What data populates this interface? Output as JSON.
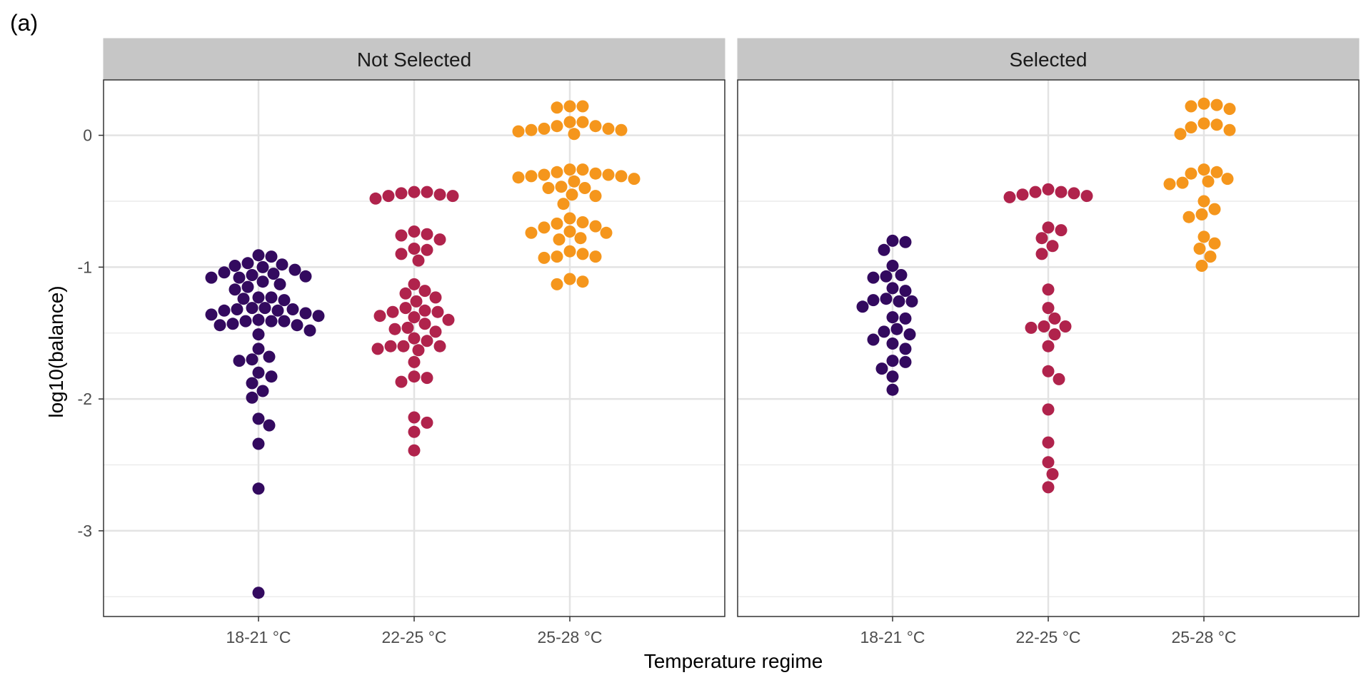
{
  "figure_tag": "(a)",
  "chart_data": {
    "type": "scatter",
    "subtype": "beeswarm (faceted)",
    "xlabel": "Temperature regime",
    "ylabel": "log10(balance)",
    "categories": [
      "18-21 °C",
      "22-25 °C",
      "25-28 °C"
    ],
    "ylim": [
      -3.65,
      0.42
    ],
    "yticks": [
      0,
      -1,
      -2,
      -3
    ],
    "yticklabels": [
      "0",
      "-1",
      "-2",
      "-3"
    ],
    "grid": true,
    "legend": "none",
    "colors": {
      "18-21 °C": "#330a5f",
      "22-25 °C": "#b0234c",
      "25-28 °C": "#f5961c"
    },
    "facets": [
      {
        "title": "Not Selected",
        "groups": [
          {
            "category": "18-21 °C",
            "y": [
              -0.91,
              -0.92,
              -0.97,
              -0.98,
              -0.99,
              -1.0,
              -1.02,
              -1.04,
              -1.05,
              -1.06,
              -1.07,
              -1.08,
              -1.08,
              -1.11,
              -1.13,
              -1.15,
              -1.17,
              -1.23,
              -1.23,
              -1.24,
              -1.25,
              -1.31,
              -1.31,
              -1.32,
              -1.32,
              -1.33,
              -1.33,
              -1.35,
              -1.36,
              -1.37,
              -1.4,
              -1.41,
              -1.41,
              -1.41,
              -1.43,
              -1.44,
              -1.44,
              -1.48,
              -1.51,
              -1.62,
              -1.68,
              -1.7,
              -1.71,
              -1.8,
              -1.83,
              -1.88,
              -1.94,
              -1.99,
              -2.15,
              -2.2,
              -2.34,
              -2.68,
              -3.47
            ]
          },
          {
            "category": "22-25 °C",
            "y": [
              -0.43,
              -0.43,
              -0.44,
              -0.45,
              -0.46,
              -0.46,
              -0.48,
              -0.73,
              -0.75,
              -0.76,
              -0.79,
              -0.86,
              -0.87,
              -0.9,
              -0.95,
              -1.13,
              -1.18,
              -1.2,
              -1.23,
              -1.26,
              -1.31,
              -1.33,
              -1.34,
              -1.34,
              -1.37,
              -1.38,
              -1.4,
              -1.43,
              -1.46,
              -1.47,
              -1.49,
              -1.54,
              -1.56,
              -1.6,
              -1.6,
              -1.6,
              -1.62,
              -1.63,
              -1.72,
              -1.83,
              -1.84,
              -1.87,
              -2.14,
              -2.18,
              -2.25,
              -2.39
            ]
          },
          {
            "category": "25-28 °C",
            "y": [
              0.22,
              0.21,
              0.22,
              0.1,
              0.1,
              0.07,
              0.07,
              0.05,
              0.05,
              0.04,
              0.04,
              0.03,
              0.01,
              -0.26,
              -0.26,
              -0.28,
              -0.29,
              -0.3,
              -0.3,
              -0.31,
              -0.31,
              -0.32,
              -0.33,
              -0.35,
              -0.39,
              -0.4,
              -0.4,
              -0.45,
              -0.46,
              -0.52,
              -0.63,
              -0.66,
              -0.67,
              -0.69,
              -0.7,
              -0.73,
              -0.74,
              -0.74,
              -0.78,
              -0.79,
              -0.88,
              -0.9,
              -0.92,
              -0.92,
              -0.93,
              -1.09,
              -1.11,
              -1.13
            ]
          }
        ]
      },
      {
        "title": "Selected",
        "groups": [
          {
            "category": "18-21 °C",
            "y": [
              -0.8,
              -0.81,
              -0.87,
              -0.99,
              -1.06,
              -1.07,
              -1.08,
              -1.16,
              -1.18,
              -1.24,
              -1.25,
              -1.26,
              -1.26,
              -1.3,
              -1.38,
              -1.39,
              -1.47,
              -1.49,
              -1.51,
              -1.55,
              -1.58,
              -1.62,
              -1.71,
              -1.72,
              -1.77,
              -1.83,
              -1.93
            ]
          },
          {
            "category": "22-25 °C",
            "y": [
              -0.41,
              -0.43,
              -0.43,
              -0.44,
              -0.45,
              -0.46,
              -0.47,
              -0.7,
              -0.72,
              -0.78,
              -0.84,
              -0.9,
              -1.17,
              -1.31,
              -1.39,
              -1.45,
              -1.45,
              -1.46,
              -1.51,
              -1.6,
              -1.79,
              -1.85,
              -2.08,
              -2.33,
              -2.48,
              -2.57,
              -2.67
            ]
          },
          {
            "category": "25-28 °C",
            "y": [
              0.24,
              0.23,
              0.22,
              0.2,
              0.09,
              0.08,
              0.06,
              0.04,
              0.01,
              -0.26,
              -0.28,
              -0.29,
              -0.33,
              -0.35,
              -0.36,
              -0.37,
              -0.5,
              -0.56,
              -0.6,
              -0.62,
              -0.77,
              -0.82,
              -0.86,
              -0.92,
              -0.99
            ]
          }
        ]
      }
    ]
  }
}
